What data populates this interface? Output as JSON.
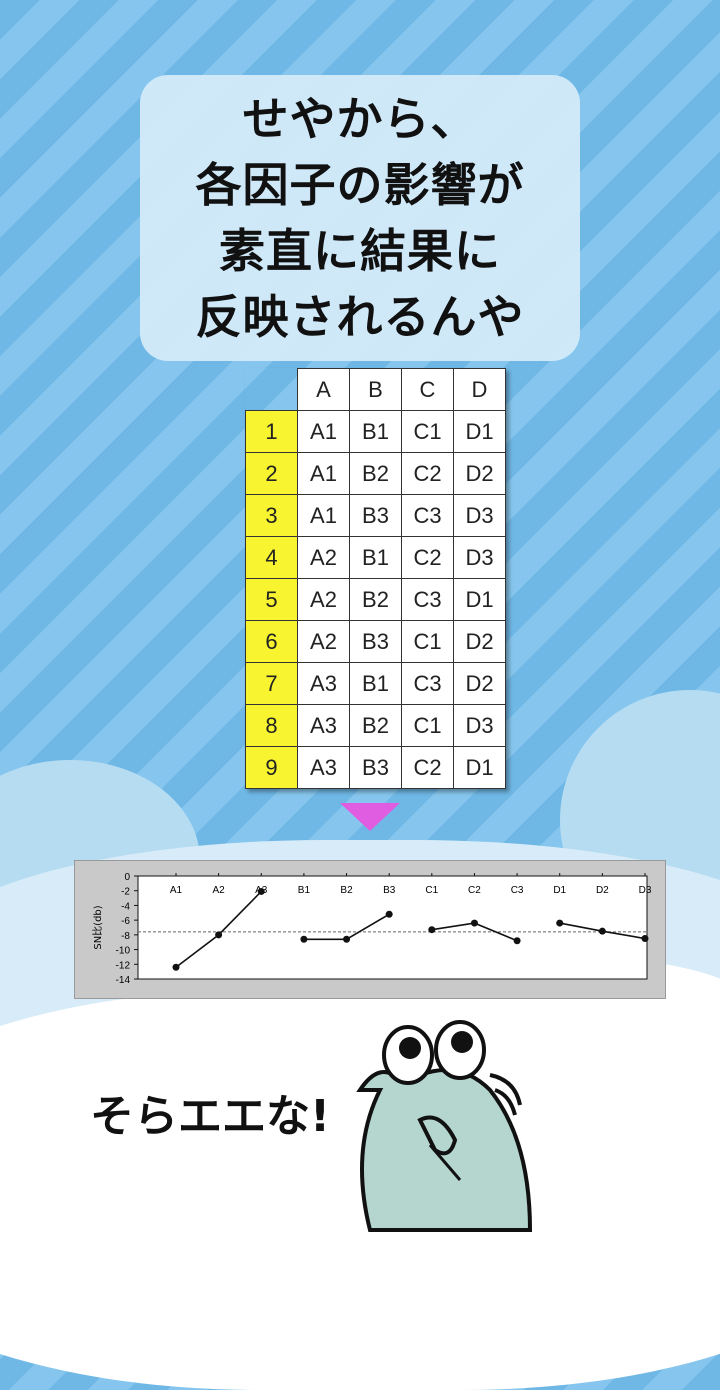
{
  "bubble": {
    "lines": [
      "せやから、",
      "各因子の影響が",
      "素直に結果に",
      "反映されるんや"
    ]
  },
  "table": {
    "headers": [
      "A",
      "B",
      "C",
      "D"
    ],
    "rows": [
      {
        "n": "1",
        "cells": [
          "A1",
          "B1",
          "C1",
          "D1"
        ]
      },
      {
        "n": "2",
        "cells": [
          "A1",
          "B2",
          "C2",
          "D2"
        ]
      },
      {
        "n": "3",
        "cells": [
          "A1",
          "B3",
          "C3",
          "D3"
        ]
      },
      {
        "n": "4",
        "cells": [
          "A2",
          "B1",
          "C2",
          "D3"
        ]
      },
      {
        "n": "5",
        "cells": [
          "A2",
          "B2",
          "C3",
          "D1"
        ]
      },
      {
        "n": "6",
        "cells": [
          "A2",
          "B3",
          "C1",
          "D2"
        ]
      },
      {
        "n": "7",
        "cells": [
          "A3",
          "B1",
          "C3",
          "D2"
        ]
      },
      {
        "n": "8",
        "cells": [
          "A3",
          "B2",
          "C1",
          "D3"
        ]
      },
      {
        "n": "9",
        "cells": [
          "A3",
          "B3",
          "C2",
          "D1"
        ]
      }
    ]
  },
  "chart_data": {
    "type": "line",
    "ylabel": "SN比(db)",
    "ylim": [
      -14,
      0
    ],
    "yticks": [
      "0",
      "-2",
      "-4",
      "-6",
      "-8",
      "-10",
      "-12",
      "-14"
    ],
    "categories": [
      "A1",
      "A2",
      "A3",
      "B1",
      "B2",
      "B3",
      "C1",
      "C2",
      "C3",
      "D1",
      "D2",
      "D3"
    ],
    "groups": [
      [
        -12.4,
        -8.0,
        -2.1
      ],
      [
        -8.6,
        -8.6,
        -5.2
      ],
      [
        -7.3,
        -6.4,
        -8.8
      ],
      [
        -6.4,
        -7.5,
        -8.5
      ]
    ],
    "mean_line": -7.6,
    "grid": false
  },
  "caption": "そらエエな!",
  "colors": {
    "row_number_bg": "#f8f530",
    "arrow": "#e05ce0"
  }
}
